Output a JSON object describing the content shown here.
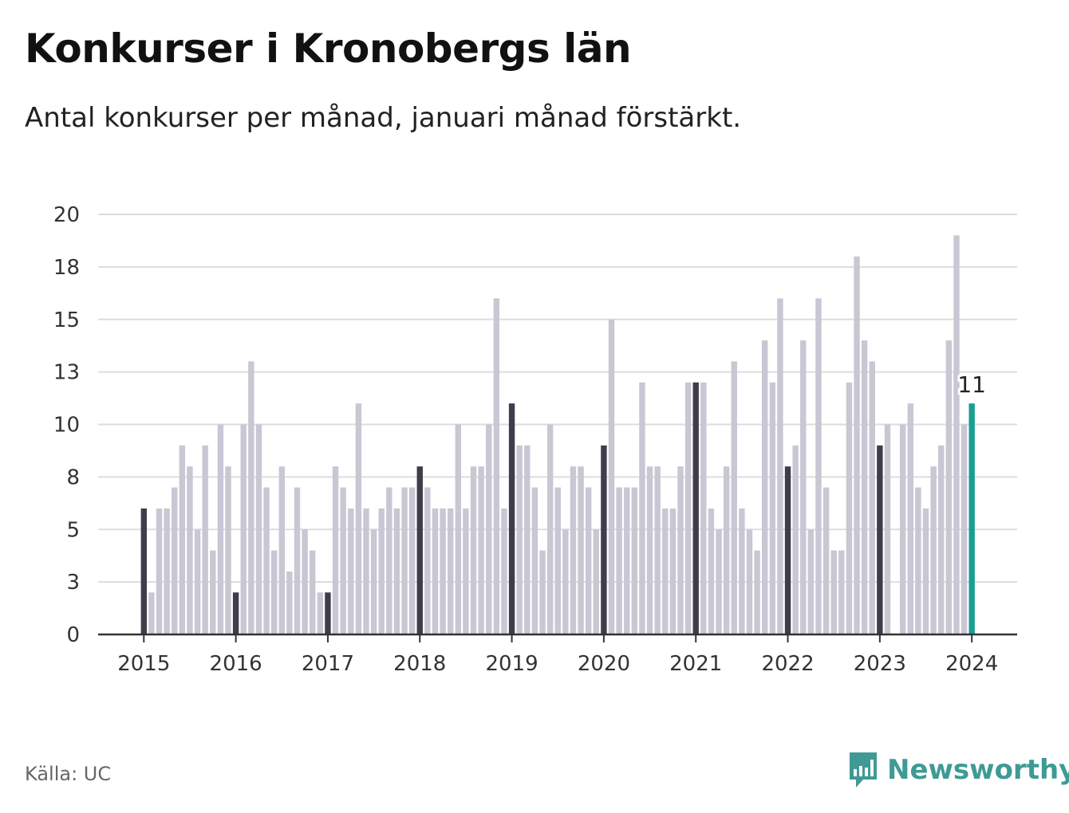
{
  "header": {
    "title": "Konkurser i Kronobergs län",
    "subtitle": "Antal konkurser per månad, januari månad förstärkt."
  },
  "footer": {
    "source": "Källa: UC",
    "brand": "Newsworthy"
  },
  "colors": {
    "bar": "#c8c7d3",
    "january_bar": "#3f3d4b",
    "highlight_bar": "#1a9e94",
    "grid": "#dddddd",
    "axis": "#333333",
    "brand": "#3f9a95"
  },
  "chart_data": {
    "type": "bar",
    "title": "Konkurser i Kronobergs län",
    "subtitle": "Antal konkurser per månad, januari månad förstärkt.",
    "xlabel": "",
    "ylabel": "",
    "ylim": [
      0,
      20
    ],
    "y_ticks": [
      0,
      3,
      5,
      8,
      10,
      13,
      15,
      18,
      20
    ],
    "y_tick_values": [
      0,
      2.5,
      5,
      7.5,
      10,
      12.5,
      15,
      17.5,
      20
    ],
    "x_tick_labels": [
      "2015",
      "2016",
      "2017",
      "2018",
      "2019",
      "2020",
      "2021",
      "2022",
      "2023",
      "2024"
    ],
    "grid": true,
    "start": "2015-01",
    "series": [
      {
        "values": [
          6,
          2,
          6,
          6,
          7,
          9,
          8,
          5,
          9,
          4,
          10,
          8,
          2,
          10,
          13,
          10,
          7,
          4,
          8,
          3,
          7,
          5,
          4,
          2,
          2,
          8,
          7,
          6,
          11,
          6,
          5,
          6,
          7,
          6,
          7,
          7,
          8,
          7,
          6,
          6,
          6,
          10,
          6,
          8,
          8,
          10,
          16,
          6,
          11,
          9,
          9,
          7,
          4,
          10,
          7,
          5,
          8,
          8,
          7,
          5,
          9,
          15,
          7,
          7,
          7,
          12,
          8,
          8,
          6,
          6,
          8,
          12,
          12,
          12,
          6,
          5,
          8,
          13,
          6,
          5,
          4,
          14,
          12,
          16,
          8,
          9,
          14,
          5,
          16,
          7,
          4,
          4,
          12,
          18,
          14,
          13,
          9,
          10,
          0,
          10,
          11,
          7,
          6,
          8,
          9,
          14,
          19,
          10,
          11
        ]
      }
    ],
    "highlight": {
      "label": "11",
      "value": 11,
      "month": "2024-01"
    }
  }
}
